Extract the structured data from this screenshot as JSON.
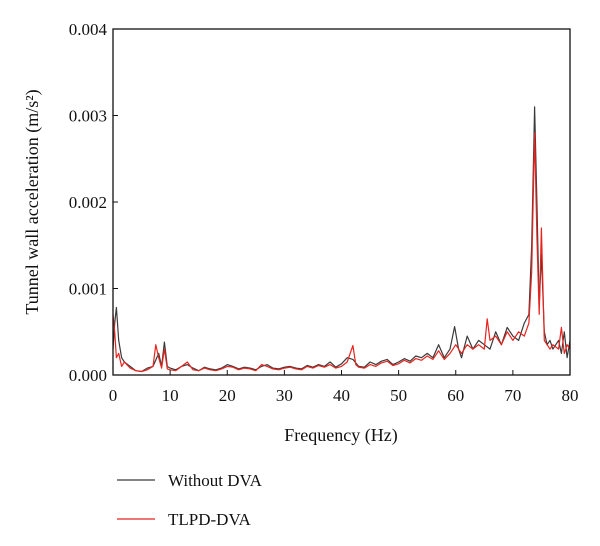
{
  "chart_data": {
    "type": "line",
    "xlabel": "Frequency (Hz)",
    "ylabel": "Tunnel wall acceleration (m/s²)",
    "xlim": [
      0,
      80
    ],
    "ylim": [
      0,
      0.004
    ],
    "x_ticks": [
      0,
      10,
      20,
      30,
      40,
      50,
      60,
      70,
      80
    ],
    "y_ticks": [
      "0.000",
      "0.001",
      "0.002",
      "0.003",
      "0.004"
    ],
    "grid": false,
    "legend_position": "bottom-left, below plot",
    "series": [
      {
        "name": "Without DVA",
        "color": "#3a3a3a",
        "x": [
          0,
          0.3,
          0.6,
          1,
          1.5,
          2,
          3,
          4,
          5,
          6,
          7,
          8,
          8.5,
          9,
          9.5,
          10,
          11,
          12,
          13,
          14,
          15,
          16,
          17,
          18,
          19,
          20,
          21,
          22,
          23,
          24,
          25,
          26,
          27,
          28,
          29,
          30,
          31,
          32,
          33,
          34,
          35,
          36,
          37,
          38,
          39,
          40,
          41,
          42,
          43,
          44,
          45,
          46,
          47,
          48,
          49,
          50,
          51,
          52,
          53,
          54,
          55,
          56,
          57,
          58,
          59,
          59.8,
          60.5,
          61,
          62,
          63,
          64,
          65,
          66,
          67,
          68,
          69,
          70,
          71,
          72,
          72.8,
          73.3,
          73.8,
          74.2,
          74.6,
          75,
          75.5,
          76,
          76.5,
          77,
          78,
          78.5,
          79,
          79.5,
          80
        ],
        "values": [
          0.0003,
          0.0006,
          0.00078,
          0.0004,
          0.0002,
          0.00015,
          0.0001,
          5e-05,
          4e-05,
          8e-05,
          0.0001,
          0.00025,
          0.0001,
          0.00038,
          0.0001,
          8e-05,
          6e-05,
          0.0001,
          0.00012,
          8e-05,
          5e-05,
          9e-05,
          7e-05,
          6e-05,
          8e-05,
          0.00012,
          0.0001,
          7e-05,
          9e-05,
          8e-05,
          6e-05,
          0.0001,
          0.00012,
          8e-05,
          7e-05,
          9e-05,
          0.0001,
          8e-05,
          7e-05,
          0.00011,
          9e-05,
          0.00012,
          0.0001,
          0.00015,
          9e-05,
          0.00013,
          0.0002,
          0.00018,
          0.0001,
          9e-05,
          0.00015,
          0.00012,
          0.00016,
          0.00018,
          0.00012,
          0.00015,
          0.00019,
          0.00016,
          0.00022,
          0.0002,
          0.00025,
          0.0002,
          0.00035,
          0.0002,
          0.0003,
          0.00056,
          0.0003,
          0.0002,
          0.00045,
          0.0003,
          0.0004,
          0.00035,
          0.0003,
          0.0005,
          0.00035,
          0.00055,
          0.00045,
          0.0004,
          0.0006,
          0.0007,
          0.0015,
          0.0031,
          0.002,
          0.0008,
          0.0014,
          0.0005,
          0.00035,
          0.0004,
          0.0003,
          0.0004,
          0.00025,
          0.0005,
          0.0002,
          0.0004
        ]
      },
      {
        "name": "TLPD-DVA",
        "color": "#e8231e",
        "x": [
          0,
          0.3,
          0.6,
          1,
          1.5,
          2,
          3,
          4,
          5,
          6,
          7,
          7.5,
          8,
          8.5,
          9,
          9.5,
          10,
          11,
          12,
          13,
          14,
          15,
          16,
          17,
          18,
          19,
          20,
          21,
          22,
          23,
          24,
          25,
          26,
          27,
          28,
          29,
          30,
          31,
          32,
          33,
          34,
          35,
          36,
          37,
          38,
          39,
          40,
          41,
          42,
          42.5,
          43,
          44,
          45,
          46,
          47,
          48,
          49,
          50,
          51,
          52,
          53,
          54,
          55,
          56,
          57,
          58,
          59,
          60,
          61,
          62,
          63,
          64,
          65,
          65.5,
          66,
          67,
          68,
          69,
          70,
          71,
          72,
          72.8,
          73.3,
          73.8,
          74.2,
          74.6,
          75,
          75.5,
          76,
          76.5,
          77,
          78,
          78.5,
          79,
          79.5,
          80
        ],
        "values": [
          0.0007,
          0.0005,
          0.0002,
          0.00025,
          0.0001,
          0.00015,
          8e-05,
          5e-05,
          4e-05,
          6e-05,
          0.0001,
          0.00035,
          0.0002,
          8e-05,
          0.0003,
          7e-05,
          6e-05,
          5e-05,
          0.0001,
          0.00015,
          6e-05,
          5e-05,
          8e-05,
          6e-05,
          5e-05,
          7e-05,
          0.0001,
          9e-05,
          6e-05,
          8e-05,
          7e-05,
          5e-05,
          0.00012,
          0.0001,
          7e-05,
          6e-05,
          8e-05,
          9e-05,
          7e-05,
          6e-05,
          0.0001,
          8e-05,
          0.00011,
          9e-05,
          0.00012,
          8e-05,
          0.0001,
          0.00015,
          0.00034,
          0.00012,
          9e-05,
          8e-05,
          0.00012,
          0.0001,
          0.00014,
          0.00016,
          0.00011,
          0.00013,
          0.00017,
          0.00014,
          0.00019,
          0.00017,
          0.00022,
          0.00018,
          0.00028,
          0.00018,
          0.00025,
          0.00035,
          0.00025,
          0.00035,
          0.0003,
          0.00035,
          0.0003,
          0.00065,
          0.0004,
          0.00045,
          0.00035,
          0.0005,
          0.0004,
          0.0005,
          0.00045,
          0.0006,
          0.0012,
          0.0028,
          0.0016,
          0.0007,
          0.0017,
          0.0004,
          0.00035,
          0.0003,
          0.00035,
          0.0003,
          0.00055,
          0.00025,
          0.00035,
          0.0003
        ]
      }
    ]
  }
}
